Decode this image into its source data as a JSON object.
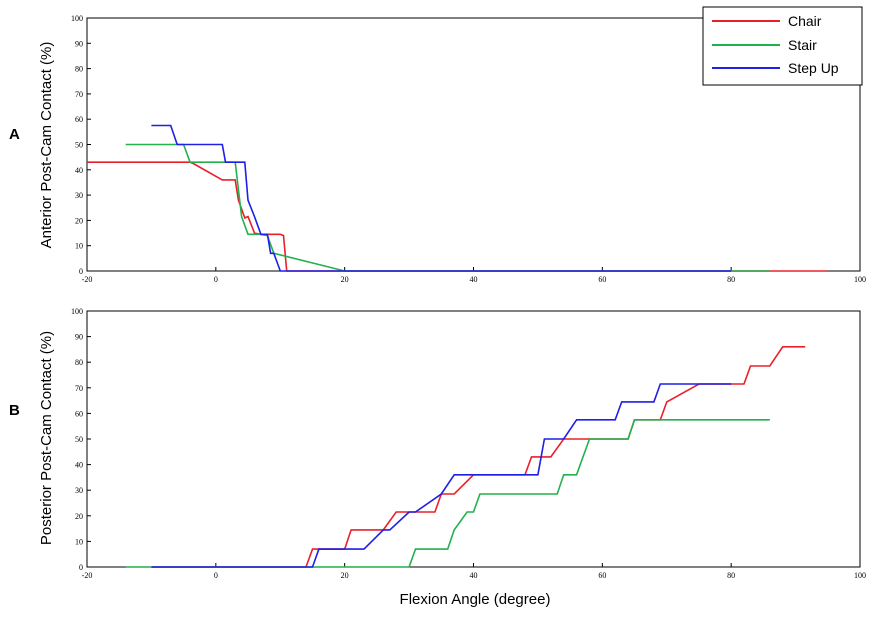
{
  "chart_data": [
    {
      "type": "line",
      "panel_label": "A",
      "xlabel": "",
      "ylabel": "Anterior Post-Cam Contact (%)",
      "xlim": [
        -20,
        100
      ],
      "ylim": [
        0,
        100
      ],
      "xticks": [
        -20,
        0,
        20,
        40,
        60,
        80,
        100
      ],
      "yticks": [
        0,
        10,
        20,
        30,
        40,
        50,
        60,
        70,
        80,
        90,
        100
      ],
      "legend": {
        "placement": "top-right",
        "entries": [
          "Chair",
          "Stair",
          "Step Up"
        ]
      },
      "series": [
        {
          "name": "Chair",
          "color": "#e8202a",
          "x": [
            -20,
            -4,
            -3.5,
            1,
            3,
            3.5,
            4.5,
            5,
            6,
            7,
            9,
            10,
            10.5,
            11,
            20,
            95
          ],
          "y": [
            43,
            43,
            42.5,
            36,
            36,
            28,
            21,
            21.5,
            15,
            14.5,
            14.5,
            14.5,
            14,
            0,
            0,
            0
          ]
        },
        {
          "name": "Stair",
          "color": "#22b14c",
          "x": [
            -14,
            -5,
            -4,
            3,
            4,
            5,
            7,
            8,
            9,
            20,
            86
          ],
          "y": [
            50,
            50,
            43,
            43,
            21.5,
            14.5,
            14.5,
            14,
            7,
            0,
            0
          ]
        },
        {
          "name": "Step Up",
          "color": "#1f1fe6",
          "x": [
            -10,
            -7,
            -6,
            1,
            1.5,
            4.5,
            5,
            6,
            7,
            8,
            8.5,
            9,
            10,
            20,
            80
          ],
          "y": [
            57.5,
            57.5,
            50,
            50,
            43,
            43,
            28,
            21.5,
            14.5,
            14.5,
            7,
            7,
            0,
            0,
            0
          ]
        }
      ]
    },
    {
      "type": "line",
      "panel_label": "B",
      "xlabel": "Flexion Angle (degree)",
      "ylabel": "Posterior Post-Cam Contact (%)",
      "xlim": [
        -20,
        100
      ],
      "ylim": [
        0,
        100
      ],
      "xticks": [
        -20,
        0,
        20,
        40,
        60,
        80,
        100
      ],
      "yticks": [
        0,
        10,
        20,
        30,
        40,
        50,
        60,
        70,
        80,
        90,
        100
      ],
      "series": [
        {
          "name": "Chair",
          "color": "#e8202a",
          "x": [
            -10,
            14,
            15,
            20,
            21,
            25,
            26,
            28,
            34,
            35,
            37,
            40,
            48,
            49,
            52,
            54,
            56,
            58,
            64,
            65,
            69,
            70,
            75,
            82,
            83,
            86,
            88,
            91.5
          ],
          "y": [
            0,
            0,
            7,
            7,
            14.5,
            14.5,
            14.5,
            21.5,
            21.5,
            28.5,
            28.5,
            36,
            36,
            43,
            43,
            50,
            50,
            50,
            50,
            57.5,
            57.5,
            64.5,
            71.5,
            71.5,
            78.5,
            78.5,
            86,
            86
          ]
        },
        {
          "name": "Stair",
          "color": "#22b14c",
          "x": [
            -14,
            30,
            31,
            36,
            37,
            39,
            40,
            41,
            53,
            54,
            56,
            57,
            58,
            64,
            65,
            86
          ],
          "y": [
            0,
            0,
            7,
            7,
            14.5,
            21.5,
            21.5,
            28.5,
            28.5,
            36,
            36,
            43,
            50,
            50,
            57.5,
            57.5
          ]
        },
        {
          "name": "Step Up",
          "color": "#1f1fe6",
          "x": [
            -10,
            15,
            16,
            22,
            23,
            26,
            27,
            30,
            31,
            35,
            37,
            50,
            51,
            54,
            56,
            62,
            63,
            68,
            69,
            80
          ],
          "y": [
            0,
            0,
            7,
            7,
            7,
            14.5,
            14.5,
            21.5,
            21.5,
            28.5,
            36,
            36,
            50,
            50,
            57.5,
            57.5,
            64.5,
            64.5,
            71.5,
            71.5
          ]
        }
      ]
    }
  ]
}
